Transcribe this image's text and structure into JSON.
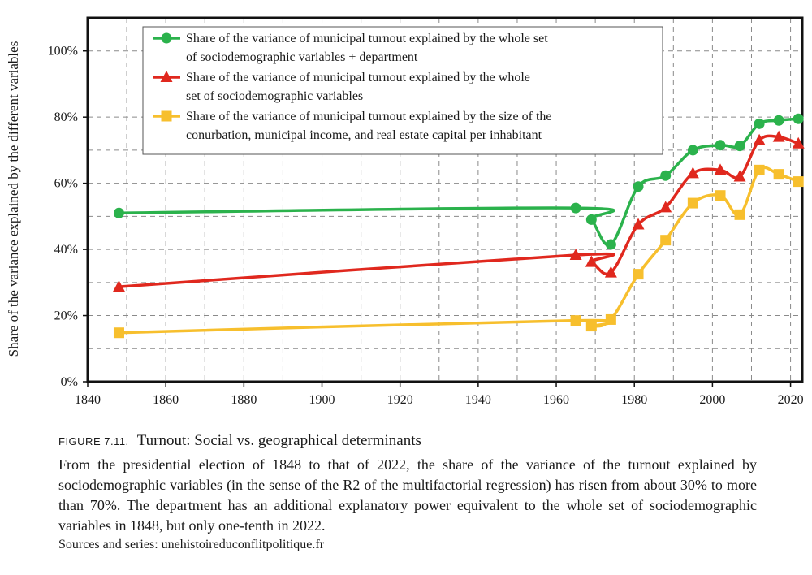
{
  "chart_data": {
    "type": "line",
    "title": "",
    "xlabel": "",
    "ylabel": "Share of the variance explained by the different variables",
    "xlim": [
      1840,
      2023
    ],
    "ylim": [
      0,
      1.1
    ],
    "x_ticks": [
      1840,
      1860,
      1880,
      1900,
      1920,
      1940,
      1960,
      1980,
      2000,
      2020
    ],
    "y_ticks": [
      0,
      0.2,
      0.4,
      0.6,
      0.8,
      1.0
    ],
    "y_tick_labels": [
      "0%",
      "20%",
      "40%",
      "60%",
      "80%",
      "100%"
    ],
    "grid": true,
    "legend_position": "top-center",
    "x": [
      1848,
      1965,
      1969,
      1974,
      1981,
      1988,
      1995,
      2002,
      2007,
      2012,
      2017,
      2022
    ],
    "series": [
      {
        "name_lines": [
          "Share of the variance of municipal turnout explained by the whole set",
          "of sociodemographic variables + department"
        ],
        "color": "#2bb24c",
        "marker": "circle",
        "values": [
          0.51,
          0.525,
          0.49,
          0.415,
          0.59,
          0.623,
          0.7,
          0.715,
          0.713,
          0.78,
          0.79,
          0.795
        ]
      },
      {
        "name_lines": [
          "Share of the variance of municipal turnout explained by the whole",
          "set of sociodemographic variables"
        ],
        "color": "#e0281e",
        "marker": "triangle",
        "values": [
          0.287,
          0.383,
          0.362,
          0.33,
          0.475,
          0.527,
          0.63,
          0.64,
          0.62,
          0.73,
          0.74,
          0.72
        ]
      },
      {
        "name_lines": [
          "Share of the variance of municipal turnout explained by the size of the",
          "conurbation, municipal income, and real estate capital per inhabitant"
        ],
        "color": "#f7bf2d",
        "marker": "square",
        "values": [
          0.148,
          0.185,
          0.168,
          0.188,
          0.325,
          0.428,
          0.54,
          0.563,
          0.505,
          0.64,
          0.627,
          0.605
        ]
      }
    ]
  },
  "caption": {
    "label": "FIGURE 7.11.",
    "title": "Turnout: Social vs. geographical determinants",
    "body": "From the presidential election of 1848 to that of 2022, the share of the variance of the turnout explained by sociodemographic variables (in the sense of the R2 of the multifactorial regression) has risen from about 30% to more than 70%. The department has an additional explanatory power equivalent to the whole set of sociodemographic variables in 1848, but only one-tenth in 2022.",
    "source": "Sources and series: unehistoireduconflitpolitique.fr"
  }
}
